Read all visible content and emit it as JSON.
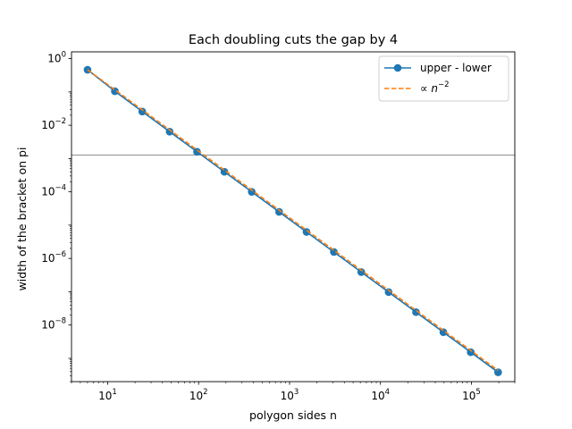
{
  "chart_data": {
    "type": "line",
    "title": "Each doubling cuts the gap by 4",
    "xlabel": "polygon sides n",
    "ylabel": "width of the bracket on pi",
    "xscale": "log",
    "yscale": "log",
    "xlim": [
      4,
      300000
    ],
    "ylim": [
      2e-10,
      1.6
    ],
    "grid": false,
    "legend_position": "upper right",
    "x_ticks": [
      {
        "value": 10,
        "base": "10",
        "exp": "1"
      },
      {
        "value": 100,
        "base": "10",
        "exp": "2"
      },
      {
        "value": 1000,
        "base": "10",
        "exp": "3"
      },
      {
        "value": 10000,
        "base": "10",
        "exp": "4"
      },
      {
        "value": 100000,
        "base": "10",
        "exp": "5"
      }
    ],
    "y_ticks": [
      {
        "value": 1e-08,
        "base": "10",
        "exp": "−8"
      },
      {
        "value": 1e-06,
        "base": "10",
        "exp": "−6"
      },
      {
        "value": 0.0001,
        "base": "10",
        "exp": "−4"
      },
      {
        "value": 0.01,
        "base": "10",
        "exp": "−2"
      },
      {
        "value": 1,
        "base": "10",
        "exp": "0"
      }
    ],
    "x": [
      6,
      12,
      24,
      48,
      96,
      192,
      384,
      768,
      1536,
      3072,
      6144,
      12288,
      24576,
      49152,
      98304,
      196608
    ],
    "series": [
      {
        "name": "upper - lower",
        "style": "solid-marker",
        "color": "#1f77b4",
        "values": [
          0.464,
          0.105,
          0.0258,
          0.00642,
          0.0016,
          0.0004,
          0.0001,
          2.5e-05,
          6.25e-06,
          1.56e-06,
          3.9e-07,
          9.76e-08,
          2.44e-08,
          6.1e-09,
          1.53e-09,
          3.81e-10
        ]
      },
      {
        "name_prefix": "∝ ",
        "name_math": "n",
        "name_exp": "−2",
        "style": "dashed",
        "color": "#ff7f0e",
        "values": [
          0.464,
          0.116,
          0.029,
          0.00725,
          0.00181,
          0.000453,
          0.000113,
          2.83e-05,
          7.08e-06,
          1.77e-06,
          4.42e-07,
          1.11e-07,
          2.76e-08,
          6.9e-09,
          1.73e-09,
          4.32e-10
        ]
      }
    ],
    "reference_line": {
      "y": 0.00127,
      "color": "#808080"
    }
  }
}
